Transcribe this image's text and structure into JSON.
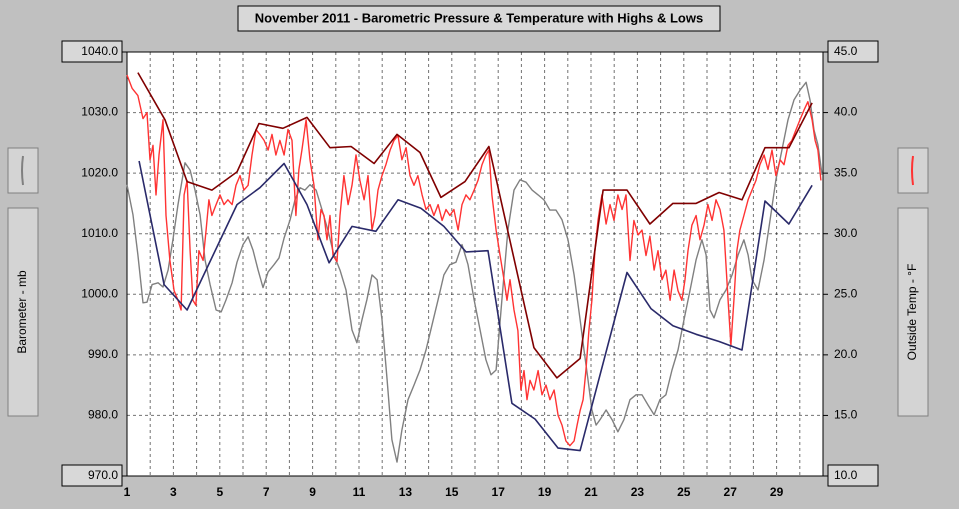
{
  "chart_data": {
    "type": "line",
    "title": "November 2011 - Barometric Pressure & Temperature with Highs & Lows",
    "ylabel": "Barometer - mb",
    "y2label": "Outside Temp - °F",
    "xlim": [
      1,
      31
    ],
    "xticks": [
      1,
      3,
      5,
      7,
      9,
      11,
      13,
      15,
      17,
      19,
      21,
      23,
      25,
      27,
      29
    ],
    "x_minor_ticks": [
      2,
      4,
      6,
      8,
      10,
      12,
      14,
      16,
      18,
      20,
      22,
      24,
      26,
      28,
      30
    ],
    "ylim": [
      970,
      1040
    ],
    "yticks": [
      {
        "value": 970,
        "label": "970.0"
      },
      {
        "value": 980,
        "label": "980.0"
      },
      {
        "value": 990,
        "label": "990.0"
      },
      {
        "value": 1000,
        "label": "1000.0"
      },
      {
        "value": 1010,
        "label": "1010.0"
      },
      {
        "value": 1020,
        "label": "1020.0"
      },
      {
        "value": 1030,
        "label": "1030.0"
      },
      {
        "value": 1040,
        "label": "1040.0"
      }
    ],
    "y2lim": [
      10,
      45
    ],
    "y2ticks": [
      {
        "value": 10,
        "label": "10.0"
      },
      {
        "value": 15,
        "label": "15.0"
      },
      {
        "value": 20,
        "label": "20.0"
      },
      {
        "value": 25,
        "label": "25.0"
      },
      {
        "value": 30,
        "label": "30.0"
      },
      {
        "value": 35,
        "label": "35.0"
      },
      {
        "value": 40,
        "label": "40.0"
      },
      {
        "value": 45,
        "label": "45.0"
      }
    ],
    "grid": true,
    "series": [
      {
        "color": "#808080",
        "axis": "y",
        "x": [
          1.0,
          1.26,
          1.47,
          1.69,
          1.86,
          2.08,
          2.34,
          2.55,
          2.77,
          2.98,
          3.2,
          3.5,
          3.72,
          3.93,
          4.15,
          4.36,
          4.58,
          4.84,
          5.06,
          5.27,
          5.53,
          5.74,
          6.0,
          6.22,
          6.43,
          6.65,
          6.86,
          7.08,
          7.34,
          7.55,
          7.77,
          8.03,
          8.24,
          8.46,
          8.67,
          8.89,
          9.15,
          9.41,
          9.66,
          9.92,
          10.18,
          10.44,
          10.7,
          10.91,
          11.13,
          11.34,
          11.56,
          11.78,
          11.99,
          12.21,
          12.42,
          12.64,
          12.85,
          13.11,
          13.37,
          13.63,
          13.89,
          14.15,
          14.41,
          14.66,
          14.92,
          15.18,
          15.44,
          15.7,
          15.96,
          16.22,
          16.47,
          16.69,
          16.91,
          17.16,
          17.42,
          17.68,
          17.94,
          18.2,
          18.46,
          18.72,
          18.97,
          19.23,
          19.49,
          19.75,
          20.01,
          20.27,
          20.53,
          20.7,
          20.87,
          21.04,
          21.22,
          21.39,
          21.65,
          21.91,
          22.16,
          22.42,
          22.68,
          22.94,
          23.2,
          23.46,
          23.72,
          23.97,
          24.23,
          24.49,
          24.75,
          25.01,
          25.27,
          25.53,
          25.78,
          25.96,
          26.13,
          26.3,
          26.56,
          26.82,
          27.08,
          27.34,
          27.59,
          27.77,
          27.94,
          28.2,
          28.46,
          28.72,
          28.97,
          29.23,
          29.49,
          29.75,
          30.01,
          30.27,
          30.44,
          30.61,
          30.78,
          30.96
        ],
        "values": [
          1018.1,
          1013.1,
          1006.5,
          998.6,
          998.7,
          1001.6,
          1001.9,
          1001.2,
          1004.0,
          1009.0,
          1014.8,
          1021.7,
          1020.5,
          1017.2,
          1013.1,
          1005.7,
          1001.6,
          997.4,
          997.1,
          999.1,
          1001.9,
          1005.3,
          1008.2,
          1009.5,
          1007.3,
          1004.0,
          1001.1,
          1003.7,
          1004.9,
          1006.0,
          1009.3,
          1012.3,
          1015.6,
          1017.6,
          1017.2,
          1018.1,
          1017.2,
          1013.9,
          1010.6,
          1006.5,
          1004.0,
          1000.7,
          994.1,
          992.0,
          995.8,
          999.1,
          1003.2,
          1002.4,
          995.8,
          985.9,
          976.0,
          972.3,
          977.6,
          982.6,
          985.0,
          987.5,
          990.8,
          995.0,
          999.1,
          1003.2,
          1004.9,
          1005.3,
          1008.2,
          1004.9,
          999.1,
          994.1,
          989.2,
          986.7,
          987.5,
          999.1,
          1010.6,
          1017.2,
          1018.9,
          1018.5,
          1017.2,
          1016.4,
          1015.6,
          1013.9,
          1013.9,
          1012.3,
          1009.0,
          1003.2,
          995.8,
          990.8,
          985.9,
          980.9,
          978.4,
          979.3,
          980.9,
          979.3,
          977.3,
          979.3,
          982.6,
          983.4,
          983.4,
          981.7,
          980.1,
          982.6,
          983.4,
          987.5,
          990.8,
          995.8,
          1000.7,
          1005.7,
          1009.0,
          1006.5,
          997.4,
          996.1,
          999.1,
          1000.7,
          1003.2,
          1006.5,
          1009.0,
          1006.5,
          1002.4,
          1000.7,
          1005.7,
          1012.3,
          1018.9,
          1023.8,
          1028.8,
          1032.1,
          1033.7,
          1035.0,
          1032.1,
          1027.1,
          1024.7,
          1019.7
        ]
      },
      {
        "color": "#ff3333",
        "axis": "y2",
        "x": [
          1.0,
          1.22,
          1.47,
          1.69,
          1.86,
          1.99,
          2.12,
          2.25,
          2.38,
          2.55,
          2.68,
          2.85,
          3.03,
          3.2,
          3.33,
          3.46,
          3.59,
          3.72,
          3.84,
          3.97,
          4.1,
          4.28,
          4.41,
          4.53,
          4.66,
          4.84,
          5.01,
          5.18,
          5.35,
          5.53,
          5.7,
          5.87,
          6.04,
          6.22,
          6.39,
          6.56,
          6.73,
          6.91,
          7.08,
          7.25,
          7.42,
          7.59,
          7.77,
          7.94,
          8.11,
          8.28,
          8.41,
          8.54,
          8.72,
          8.89,
          9.06,
          9.23,
          9.36,
          9.49,
          9.62,
          9.75,
          9.88,
          10.05,
          10.18,
          10.35,
          10.53,
          10.7,
          10.87,
          11.04,
          11.22,
          11.39,
          11.56,
          11.69,
          11.82,
          11.99,
          12.16,
          12.34,
          12.51,
          12.68,
          12.85,
          13.03,
          13.2,
          13.37,
          13.54,
          13.72,
          13.89,
          14.06,
          14.23,
          14.41,
          14.58,
          14.75,
          14.92,
          15.09,
          15.27,
          15.44,
          15.61,
          15.78,
          15.96,
          16.13,
          16.3,
          16.47,
          16.6,
          16.73,
          16.91,
          17.08,
          17.25,
          17.38,
          17.51,
          17.68,
          17.85,
          17.98,
          18.11,
          18.24,
          18.37,
          18.54,
          18.72,
          18.89,
          19.06,
          19.23,
          19.41,
          19.58,
          19.75,
          19.92,
          20.09,
          20.27,
          20.4,
          20.53,
          20.66,
          20.78,
          20.91,
          21.04,
          21.17,
          21.3,
          21.47,
          21.65,
          21.82,
          21.99,
          22.16,
          22.34,
          22.51,
          22.68,
          22.85,
          23.03,
          23.2,
          23.37,
          23.54,
          23.72,
          23.89,
          24.06,
          24.23,
          24.41,
          24.58,
          24.75,
          24.92,
          25.05,
          25.18,
          25.35,
          25.53,
          25.7,
          25.87,
          26.04,
          26.22,
          26.39,
          26.56,
          26.73,
          26.91,
          27.03,
          27.16,
          27.29,
          27.42,
          27.59,
          27.77,
          27.94,
          28.11,
          28.28,
          28.46,
          28.63,
          28.8,
          28.97,
          29.15,
          29.32,
          29.49,
          29.66,
          29.84,
          30.01,
          30.18,
          30.35,
          30.53,
          30.66,
          30.78,
          30.91
        ],
        "values": [
          43.1,
          42.0,
          41.4,
          39.5,
          40.0,
          36.1,
          37.3,
          33.2,
          36.5,
          39.4,
          31.5,
          27.8,
          25.3,
          24.5,
          23.7,
          33.2,
          34.4,
          28.6,
          24.5,
          24.1,
          28.6,
          27.8,
          30.3,
          32.8,
          31.5,
          32.4,
          33.2,
          32.4,
          32.8,
          32.4,
          34.0,
          34.8,
          33.6,
          34.0,
          36.5,
          38.6,
          38.2,
          37.7,
          36.9,
          38.2,
          36.5,
          37.7,
          36.5,
          38.6,
          37.7,
          31.5,
          35.3,
          36.9,
          39.4,
          36.1,
          34.0,
          29.5,
          32.0,
          31.5,
          29.5,
          31.5,
          28.2,
          27.7,
          31.5,
          34.8,
          32.4,
          34.0,
          36.5,
          34.4,
          32.8,
          34.8,
          30.3,
          31.5,
          33.6,
          34.8,
          35.7,
          36.9,
          37.7,
          38.1,
          36.1,
          37.1,
          34.8,
          34.0,
          34.8,
          33.2,
          32.0,
          32.4,
          31.5,
          32.4,
          31.1,
          32.0,
          31.5,
          32.0,
          30.3,
          32.4,
          33.2,
          32.8,
          33.6,
          34.4,
          35.7,
          36.5,
          36.9,
          33.2,
          30.3,
          28.2,
          26.2,
          24.5,
          26.2,
          23.7,
          22.0,
          17.1,
          18.7,
          16.3,
          17.9,
          17.1,
          18.7,
          16.7,
          17.5,
          16.3,
          17.1,
          15.0,
          14.2,
          12.9,
          12.5,
          12.9,
          14.2,
          15.4,
          16.3,
          18.7,
          22.0,
          24.5,
          28.6,
          31.1,
          33.2,
          30.8,
          32.4,
          31.1,
          33.2,
          32.0,
          33.2,
          27.8,
          31.1,
          29.9,
          30.3,
          28.2,
          29.8,
          27.0,
          28.6,
          26.2,
          27.0,
          24.5,
          27.0,
          25.3,
          24.5,
          26.2,
          28.6,
          30.7,
          31.5,
          29.5,
          30.7,
          32.4,
          31.1,
          32.8,
          32.0,
          30.3,
          24.5,
          20.8,
          24.5,
          28.6,
          30.3,
          31.5,
          32.8,
          33.6,
          34.4,
          35.7,
          36.5,
          35.3,
          36.9,
          34.8,
          36.1,
          35.7,
          37.3,
          37.7,
          38.6,
          39.4,
          40.2,
          40.9,
          39.4,
          37.7,
          36.9,
          34.4
        ]
      },
      {
        "color": "#800000",
        "axis": "y2",
        "x": [
          1.47,
          2.64,
          3.59,
          4.66,
          5.74,
          6.69,
          7.72,
          8.76,
          9.75,
          10.66,
          11.65,
          12.64,
          13.63,
          14.53,
          15.57,
          16.6,
          18.54,
          19.53,
          20.53,
          21.52,
          22.55,
          23.54,
          24.53,
          25.53,
          26.52,
          27.51,
          28.5,
          29.53,
          30.53
        ],
        "values": [
          43.3,
          39.4,
          34.3,
          33.6,
          35.1,
          39.1,
          38.7,
          39.6,
          37.1,
          37.2,
          35.8,
          38.2,
          36.7,
          33.0,
          34.3,
          37.2,
          20.6,
          18.1,
          19.7,
          33.6,
          33.6,
          30.8,
          32.5,
          32.5,
          33.4,
          32.8,
          37.1,
          37.1,
          40.8
        ]
      },
      {
        "color": "#2a2a6a",
        "axis": "y2",
        "x": [
          1.52,
          2.6,
          3.59,
          5.74,
          6.73,
          7.77,
          8.76,
          9.71,
          10.7,
          11.73,
          12.68,
          13.67,
          14.66,
          15.61,
          16.56,
          17.59,
          18.59,
          19.58,
          20.53,
          22.55,
          23.59,
          24.53,
          25.53,
          26.52,
          27.51,
          28.5,
          29.53,
          30.53
        ],
        "values": [
          36.0,
          25.8,
          23.7,
          32.4,
          33.8,
          35.8,
          32.4,
          27.6,
          30.6,
          30.2,
          32.8,
          32.1,
          30.6,
          28.5,
          28.6,
          16.0,
          14.7,
          12.3,
          12.1,
          26.8,
          23.8,
          22.4,
          21.7,
          21.1,
          20.4,
          32.7,
          30.8,
          34.0
        ]
      }
    ]
  }
}
